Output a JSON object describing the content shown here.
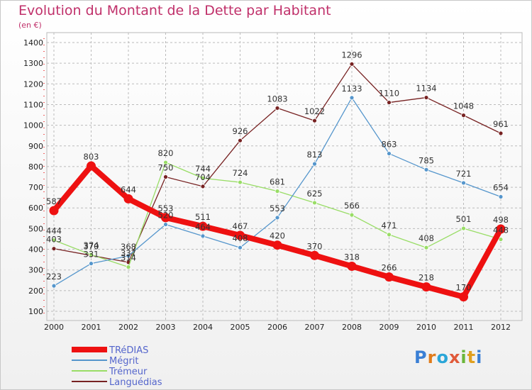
{
  "title": "Evolution du Montant de la Dette par Habitant",
  "subtitle": "(en €)",
  "logo": {
    "text": "Proxiti",
    "letters": [
      "P",
      "r",
      "o",
      "x",
      "i",
      "t",
      "i"
    ],
    "colors": [
      "#3a7fd5",
      "#e07b1a",
      "#2aa6d8",
      "#e05a3a",
      "#6ab63a",
      "#e0a020",
      "#3a7fd5"
    ]
  },
  "chart_data": {
    "type": "line",
    "title": "Evolution du Montant de la Dette par Habitant",
    "subtitle": "(en €)",
    "xlabel": "",
    "ylabel": "",
    "x": [
      "2000",
      "2001",
      "2002",
      "2003",
      "2004",
      "2005",
      "2006",
      "2007",
      "2008",
      "2009",
      "2010",
      "2011",
      "2012"
    ],
    "ylim": [
      100,
      1400
    ],
    "yticks": [
      100,
      200,
      300,
      400,
      500,
      600,
      700,
      800,
      900,
      1000,
      1100,
      1200,
      1300,
      1400
    ],
    "grid": "horizontal-dashed",
    "legend": "bottom-left",
    "series": [
      {
        "name": "TRéDIAS",
        "color": "#ee1111",
        "values": [
          587,
          803,
          644,
          553,
          511,
          467,
          420,
          370,
          318,
          266,
          218,
          170,
          498
        ]
      },
      {
        "name": "Mégrit",
        "color": "#5596cc",
        "values": [
          223,
          331,
          368,
          520,
          464,
          408,
          553,
          813,
          1133,
          863,
          785,
          721,
          654
        ]
      },
      {
        "name": "Trémeur",
        "color": "#99dd66",
        "values": [
          444,
          374,
          314,
          820,
          744,
          724,
          681,
          625,
          566,
          471,
          408,
          501,
          448
        ]
      },
      {
        "name": "Languédias",
        "color": "#772222",
        "values": [
          403,
          370,
          337,
          750,
          704,
          926,
          1083,
          1022,
          1296,
          1110,
          1134,
          1048,
          961
        ]
      }
    ]
  }
}
